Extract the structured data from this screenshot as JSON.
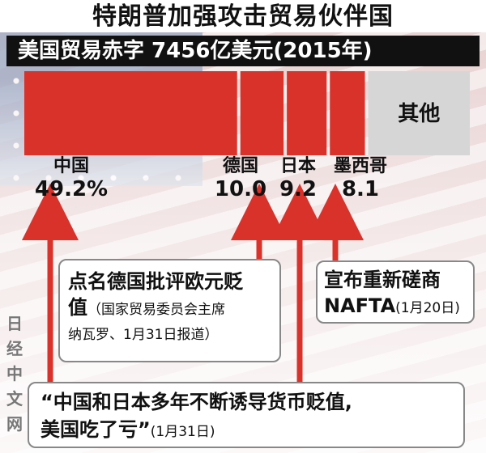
{
  "headline": "特朗普加强攻击贸易伙伴国",
  "subtitle": "美国贸易赤字 7456亿美元(2015年)",
  "chart_data": {
    "type": "bar",
    "stacked": true,
    "orientation": "horizontal",
    "categories": [
      "中国",
      "德国",
      "日本",
      "墨西哥",
      "其他"
    ],
    "values": [
      49.2,
      10.0,
      9.2,
      8.1,
      23.5
    ],
    "value_labels": [
      "49.2%",
      "10.0",
      "9.2",
      "8.1",
      ""
    ],
    "colors": [
      "#d9322b",
      "#d9322b",
      "#d9322b",
      "#d9322b",
      "#d6d6d6"
    ],
    "other_label": "其他"
  },
  "annotations": {
    "germany_box": {
      "line1": "点名德国批评欧元贬",
      "line2_big": "值",
      "line2_small": "（国家贸易委员会主席",
      "line3": "纳瓦罗、1月31日报道）"
    },
    "mexico_box": {
      "line1": "宣布重新磋商",
      "line2_big": "NAFTA",
      "line2_small": "(1月20日)"
    },
    "china_japan_box": {
      "line1": "“中国和日本多年不断诱导货币贬值,",
      "line2_big": "美国吃了亏”",
      "line2_small": "(1月31日)"
    }
  },
  "watermark": [
    "日",
    "经",
    "中",
    "文",
    "网"
  ],
  "colors": {
    "deficit_red": "#d9322b",
    "arrow_red": "#d9322b",
    "other_grey": "#d6d6d6"
  }
}
